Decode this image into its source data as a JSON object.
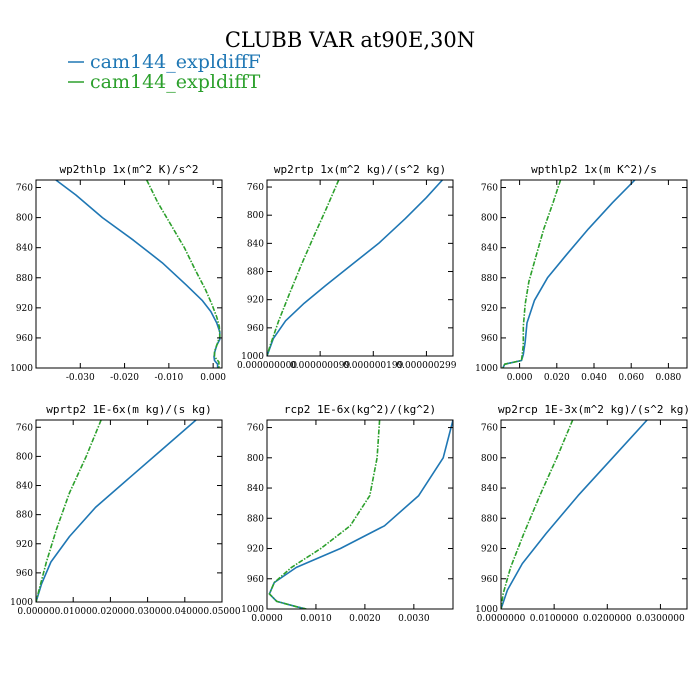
{
  "title": "CLUBB VAR at90E,30N",
  "legend": [
    {
      "name": "cam144_expldiffF",
      "color": "#1f77b4"
    },
    {
      "name": "cam144_expldiffT",
      "color": "#2ca02c"
    }
  ],
  "chart_data": [
    {
      "type": "line",
      "title": "wp2thlp  1x(m^2 K)/s^2",
      "xlim": [
        -0.04,
        0.002
      ],
      "ylim": [
        1000,
        750
      ],
      "xticks": [
        -0.03,
        -0.02,
        -0.01,
        0.0
      ],
      "xtick_labels": [
        "-0.030",
        "-0.020",
        "-0.010",
        "0.000"
      ],
      "yticks": [
        760,
        800,
        840,
        880,
        920,
        960,
        1000
      ],
      "ytick_labels": [
        "760",
        "800",
        "840",
        "880",
        "920",
        "960",
        "1000"
      ],
      "series": [
        {
          "name": "cam144_expldiffF",
          "x": [
            -0.0355,
            -0.031,
            -0.025,
            -0.018,
            -0.0115,
            -0.006,
            -0.0025,
            -0.0005,
            0.0008,
            0.0015,
            0.0015,
            0.0008,
            0.0004,
            0.0002,
            0.0003,
            0.001,
            0.001
          ],
          "y": [
            750,
            770,
            800,
            830,
            860,
            890,
            910,
            925,
            940,
            952,
            962,
            970,
            978,
            985,
            990,
            995,
            1000
          ]
        },
        {
          "name": "cam144_expldiffT",
          "x": [
            -0.015,
            -0.0125,
            -0.0095,
            -0.0065,
            -0.004,
            -0.0018,
            -0.0003,
            0.0008,
            0.0014,
            0.0015,
            0.0008,
            0.0003,
            0.0003,
            0.0013,
            0.0013
          ],
          "y": [
            750,
            780,
            810,
            840,
            870,
            895,
            915,
            932,
            945,
            958,
            970,
            978,
            985,
            992,
            1000
          ]
        }
      ]
    },
    {
      "type": "line",
      "title": "wp2rtp  1x(m^2 kg)/(s^2 kg)",
      "xlim": [
        0.0,
        3.5e-07
      ],
      "ylim": [
        1000,
        750
      ],
      "xticks": [
        0.0,
        1e-07,
        2e-07,
        3e-07
      ],
      "xtick_labels": [
        "0.000000000",
        "0.000000099",
        "0.000000199",
        "0.000000299"
      ],
      "yticks": [
        760,
        800,
        840,
        880,
        920,
        960,
        1000
      ],
      "ytick_labels": [
        "760",
        "800",
        "840",
        "880",
        "920",
        "960",
        "1000"
      ],
      "series": [
        {
          "name": "cam144_expldiffF",
          "x": [
            3.3e-07,
            3e-07,
            2.6e-07,
            2.1e-07,
            1.6e-07,
            1.1e-07,
            7e-08,
            3.5e-08,
            1.2e-08,
            0.0
          ],
          "y": [
            750,
            775,
            805,
            840,
            870,
            900,
            925,
            950,
            975,
            1000
          ]
        },
        {
          "name": "cam144_expldiffT",
          "x": [
            1.35e-07,
            1.12e-07,
            8.8e-08,
            6.5e-08,
            4.3e-08,
            2.2e-08,
            6e-09,
            0.0
          ],
          "y": [
            750,
            790,
            830,
            870,
            910,
            950,
            985,
            1000
          ]
        }
      ]
    },
    {
      "type": "line",
      "title": "wpthlp2  1x(m K^2)/s",
      "xlim": [
        -0.01,
        0.09
      ],
      "ylim": [
        1000,
        750
      ],
      "xticks": [
        0.0,
        0.02,
        0.04,
        0.06,
        0.08
      ],
      "xtick_labels": [
        "0.000",
        "0.020",
        "0.040",
        "0.060",
        "0.080"
      ],
      "yticks": [
        760,
        800,
        840,
        880,
        920,
        960,
        1000
      ],
      "ytick_labels": [
        "760",
        "800",
        "840",
        "880",
        "920",
        "960",
        "1000"
      ],
      "series": [
        {
          "name": "cam144_expldiffF",
          "x": [
            0.062,
            0.05,
            0.037,
            0.025,
            0.015,
            0.008,
            0.004,
            0.003,
            0.002,
            0.001,
            -0.008,
            -0.009
          ],
          "y": [
            750,
            780,
            815,
            850,
            880,
            910,
            940,
            965,
            982,
            990,
            995,
            1000
          ]
        },
        {
          "name": "cam144_expldiffT",
          "x": [
            0.022,
            0.018,
            0.013,
            0.009,
            0.005,
            0.003,
            0.002,
            0.002,
            0.001,
            -0.008,
            -0.009
          ],
          "y": [
            750,
            780,
            815,
            850,
            885,
            915,
            945,
            970,
            990,
            995,
            1000
          ]
        }
      ]
    },
    {
      "type": "line",
      "title": "wprtp2  1E-6x(m kg)/(s kg)",
      "xlim": [
        0.0,
        0.05
      ],
      "ylim": [
        1000,
        750
      ],
      "xticks": [
        0.0,
        0.01,
        0.02,
        0.03,
        0.04,
        0.05
      ],
      "xtick_labels": [
        "0.00000",
        "0.01000",
        "0.02000",
        "0.03000",
        "0.04000",
        "0.05000"
      ],
      "yticks": [
        760,
        800,
        840,
        880,
        920,
        960,
        1000
      ],
      "ytick_labels": [
        "760",
        "800",
        "840",
        "880",
        "920",
        "960",
        "1000"
      ],
      "series": [
        {
          "name": "cam144_expldiffF",
          "x": [
            0.043,
            0.034,
            0.025,
            0.016,
            0.009,
            0.004,
            0.0015,
            0.0
          ],
          "y": [
            750,
            790,
            830,
            870,
            910,
            945,
            975,
            1000
          ]
        },
        {
          "name": "cam144_expldiffT",
          "x": [
            0.0175,
            0.0135,
            0.009,
            0.0055,
            0.0028,
            0.001,
            0.0
          ],
          "y": [
            750,
            800,
            850,
            900,
            945,
            980,
            1000
          ]
        }
      ]
    },
    {
      "type": "line",
      "title": "rcp2  1E-6x(kg^2)/(kg^2)",
      "xlim": [
        0.0,
        0.0038
      ],
      "ylim": [
        1000,
        750
      ],
      "xticks": [
        0.0,
        0.001,
        0.002,
        0.003
      ],
      "xtick_labels": [
        "0.0000",
        "0.0010",
        "0.0020",
        "0.0030"
      ],
      "yticks": [
        760,
        800,
        840,
        880,
        920,
        960,
        1000
      ],
      "ytick_labels": [
        "760",
        "800",
        "840",
        "880",
        "920",
        "960",
        "1000"
      ],
      "series": [
        {
          "name": "cam144_expldiffF",
          "x": [
            0.0038,
            0.0036,
            0.0031,
            0.0024,
            0.0015,
            0.0006,
            0.00015,
            5e-05,
            0.0002,
            0.0006,
            0.0008
          ],
          "y": [
            750,
            800,
            850,
            890,
            920,
            945,
            965,
            980,
            990,
            997,
            1000
          ]
        },
        {
          "name": "cam144_expldiffT",
          "x": [
            0.0023,
            0.00225,
            0.0021,
            0.0017,
            0.0011,
            0.0005,
            0.00015,
            5e-05,
            0.0002,
            0.0006,
            0.0008
          ],
          "y": [
            750,
            800,
            850,
            890,
            920,
            945,
            965,
            980,
            990,
            997,
            1000
          ]
        }
      ]
    },
    {
      "type": "line",
      "title": "wp2rcp  1E-3x(m^2 kg)/(s^2 kg)",
      "xlim": [
        0.0,
        0.035
      ],
      "ylim": [
        1000,
        750
      ],
      "xticks": [
        0.0,
        0.01,
        0.02,
        0.03
      ],
      "xtick_labels": [
        "0.0000000",
        "0.0100000",
        "0.0200000",
        "0.0300000"
      ],
      "yticks": [
        760,
        800,
        840,
        880,
        920,
        960,
        1000
      ],
      "ytick_labels": [
        "760",
        "800",
        "840",
        "880",
        "920",
        "960",
        "1000"
      ],
      "series": [
        {
          "name": "cam144_expldiffF",
          "x": [
            0.0275,
            0.021,
            0.0145,
            0.0085,
            0.004,
            0.0012,
            0.0
          ],
          "y": [
            750,
            800,
            850,
            900,
            940,
            975,
            1000
          ]
        },
        {
          "name": "cam144_expldiffT",
          "x": [
            0.0135,
            0.0105,
            0.0073,
            0.0043,
            0.0018,
            0.0004,
            0.0
          ],
          "y": [
            750,
            800,
            850,
            900,
            945,
            980,
            1000
          ]
        }
      ]
    }
  ]
}
